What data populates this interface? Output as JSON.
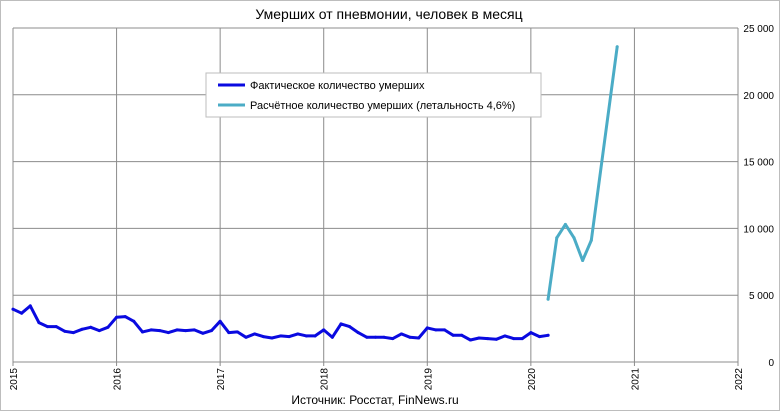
{
  "chart_data": {
    "type": "line",
    "title": "Умерших от пневмонии, человек в месяц",
    "source": "Источник: Росстат, FinNews.ru",
    "x_ticks": [
      "2015",
      "2016",
      "2017",
      "2018",
      "2019",
      "2020",
      "2021",
      "2022"
    ],
    "y_ticks": [
      "0",
      "5 000",
      "10 000",
      "15 000",
      "20 000",
      "25 000"
    ],
    "xlim": [
      "2015-01",
      "2022-01"
    ],
    "ylim": [
      0,
      25000
    ],
    "y_axis_position": "right",
    "grid": true,
    "legend_position": "top-center",
    "series": [
      {
        "name": "Фактическое количество умерших",
        "color": "#0a0ae0",
        "points": [
          [
            "2015-01",
            3950
          ],
          [
            "2015-02",
            3650
          ],
          [
            "2015-03",
            4200
          ],
          [
            "2015-04",
            2950
          ],
          [
            "2015-05",
            2650
          ],
          [
            "2015-06",
            2650
          ],
          [
            "2015-07",
            2300
          ],
          [
            "2015-08",
            2200
          ],
          [
            "2015-09",
            2450
          ],
          [
            "2015-10",
            2600
          ],
          [
            "2015-11",
            2350
          ],
          [
            "2015-12",
            2600
          ],
          [
            "2016-01",
            3350
          ],
          [
            "2016-02",
            3400
          ],
          [
            "2016-03",
            3050
          ],
          [
            "2016-04",
            2250
          ],
          [
            "2016-05",
            2400
          ],
          [
            "2016-06",
            2350
          ],
          [
            "2016-07",
            2200
          ],
          [
            "2016-08",
            2400
          ],
          [
            "2016-09",
            2350
          ],
          [
            "2016-10",
            2400
          ],
          [
            "2016-11",
            2150
          ],
          [
            "2016-12",
            2350
          ],
          [
            "2017-01",
            3050
          ],
          [
            "2017-02",
            2200
          ],
          [
            "2017-03",
            2250
          ],
          [
            "2017-04",
            1850
          ],
          [
            "2017-05",
            2100
          ],
          [
            "2017-06",
            1900
          ],
          [
            "2017-07",
            1800
          ],
          [
            "2017-08",
            1950
          ],
          [
            "2017-09",
            1900
          ],
          [
            "2017-10",
            2100
          ],
          [
            "2017-11",
            1950
          ],
          [
            "2017-12",
            1950
          ],
          [
            "2018-01",
            2400
          ],
          [
            "2018-02",
            1850
          ],
          [
            "2018-03",
            2850
          ],
          [
            "2018-04",
            2650
          ],
          [
            "2018-05",
            2200
          ],
          [
            "2018-06",
            1850
          ],
          [
            "2018-07",
            1850
          ],
          [
            "2018-08",
            1850
          ],
          [
            "2018-09",
            1750
          ],
          [
            "2018-10",
            2100
          ],
          [
            "2018-11",
            1850
          ],
          [
            "2018-12",
            1800
          ],
          [
            "2019-01",
            2550
          ],
          [
            "2019-02",
            2400
          ],
          [
            "2019-03",
            2400
          ],
          [
            "2019-04",
            2000
          ],
          [
            "2019-05",
            2000
          ],
          [
            "2019-06",
            1650
          ],
          [
            "2019-07",
            1800
          ],
          [
            "2019-08",
            1750
          ],
          [
            "2019-09",
            1700
          ],
          [
            "2019-10",
            1950
          ],
          [
            "2019-11",
            1750
          ],
          [
            "2019-12",
            1750
          ],
          [
            "2020-01",
            2200
          ],
          [
            "2020-02",
            1900
          ],
          [
            "2020-03",
            2000
          ]
        ]
      },
      {
        "name": "Расчётное количество умерших (летальность 4,6%)",
        "color": "#4bacc6",
        "points": [
          [
            "2020-03",
            4700
          ],
          [
            "2020-04",
            9300
          ],
          [
            "2020-05",
            10300
          ],
          [
            "2020-06",
            9300
          ],
          [
            "2020-07",
            7600
          ],
          [
            "2020-08",
            9100
          ],
          [
            "2020-11",
            23600
          ]
        ]
      }
    ]
  }
}
